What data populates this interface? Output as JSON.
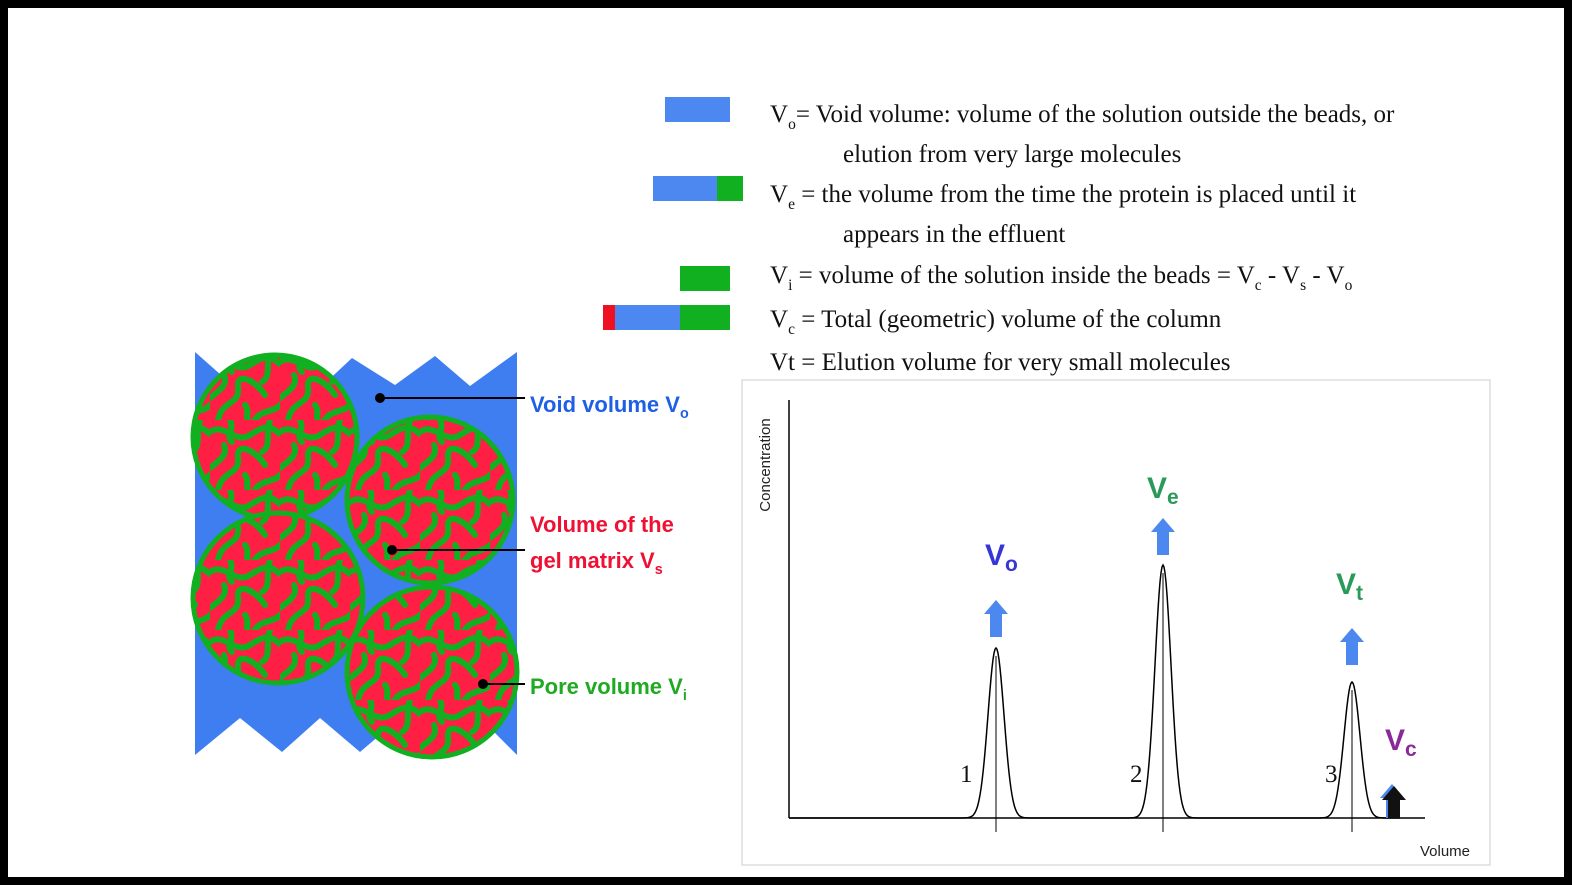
{
  "definitions": [
    {
      "parts": [
        {
          "text": "V",
          "sub": "o"
        },
        {
          "text": "= Void volume: volume of the solution outside the beads, or"
        }
      ],
      "continuation": "elution from very large molecules"
    },
    {
      "parts": [
        {
          "text": "V",
          "sub": "e"
        },
        {
          "text": " = the volume from the time the protein is placed until it"
        }
      ],
      "continuation": "appears in the effluent"
    },
    {
      "parts": [
        {
          "text": "V",
          "sub": "i"
        },
        {
          "text": " = volume of the solution inside the beads = V",
          "sub": "c"
        },
        {
          "text": " - V",
          "sub": "s"
        },
        {
          "text": " - V",
          "sub": "o"
        }
      ]
    },
    {
      "parts": [
        {
          "text": "V",
          "sub": "c"
        },
        {
          "text": " = Total (geometric) volume of the column"
        }
      ]
    },
    {
      "parts": [
        {
          "text": "Vt = Elution volume for very small molecules"
        }
      ]
    }
  ],
  "column_labels": [
    {
      "lines": [
        "Void volume V"
      ],
      "sub": "o"
    },
    {
      "lines": [
        "Volume of the",
        "gel matrix V"
      ],
      "sub": "s"
    },
    {
      "lines": [
        "Pore volume V"
      ],
      "sub": "i"
    }
  ],
  "chart": {
    "y_label": "Concentration",
    "x_label": "Volume",
    "peak_numbers": [
      "1",
      "2",
      "3"
    ],
    "markers": [
      {
        "text": "V",
        "sub": "o"
      },
      {
        "text": "V",
        "sub": "e"
      },
      {
        "text": "V",
        "sub": "t"
      },
      {
        "text": "V",
        "sub": "c"
      }
    ]
  }
}
